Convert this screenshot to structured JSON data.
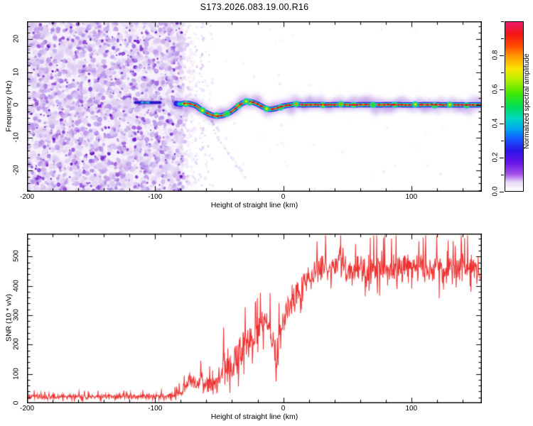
{
  "title": "S173.2026.083.19.00.R16",
  "top_plot": {
    "xlabel": "Height of straight line (km)",
    "ylabel": "Frequency (Hz)",
    "xlim": [
      -200,
      155
    ],
    "ylim": [
      -26.5,
      25.5
    ],
    "x_tick_labels": [
      "-200",
      "-100",
      "0",
      "100"
    ],
    "x_tick_values": [
      -200,
      -100,
      0,
      100
    ],
    "x_minor_step": 20,
    "y_tick_labels": [
      "-20",
      "-10",
      "0",
      "10",
      "20"
    ],
    "y_tick_values": [
      -20,
      -10,
      0,
      10,
      20
    ],
    "y_minor_step": 2
  },
  "colorbar": {
    "label": "Normalized spectral amplitude",
    "tick_labels": [
      "0.0",
      "0.2",
      "0.4",
      "0.6",
      "0.8"
    ],
    "tick_values": [
      0,
      0.2,
      0.4,
      0.6,
      0.8
    ],
    "minor_step": 0.1,
    "range": [
      0,
      1
    ],
    "stops": [
      [
        0,
        "#ffffff"
      ],
      [
        0.05,
        "#eadcf7"
      ],
      [
        0.1,
        "#a24fe8"
      ],
      [
        0.17,
        "#6613e8"
      ],
      [
        0.24,
        "#2b15e8"
      ],
      [
        0.31,
        "#115cff"
      ],
      [
        0.37,
        "#00aaf0"
      ],
      [
        0.43,
        "#00d8c0"
      ],
      [
        0.5,
        "#00dd55"
      ],
      [
        0.58,
        "#44e800"
      ],
      [
        0.66,
        "#b8ee00"
      ],
      [
        0.72,
        "#fae800"
      ],
      [
        0.79,
        "#ffa000"
      ],
      [
        0.86,
        "#ff4a00"
      ],
      [
        0.93,
        "#f21414"
      ],
      [
        1,
        "#ef1a6e"
      ]
    ]
  },
  "bottom_plot": {
    "xlabel": "Height of straight line (km)",
    "ylabel": "SNR (10 * v/v)",
    "xlim": [
      -200,
      155
    ],
    "ylim": [
      0,
      578
    ],
    "x_tick_labels": [
      "-200",
      "-100",
      "0",
      "100"
    ],
    "x_tick_values": [
      -200,
      -100,
      0,
      100
    ],
    "x_minor_step": 20,
    "y_tick_labels": [
      "0",
      "100",
      "200",
      "300",
      "400",
      "500"
    ],
    "y_tick_values": [
      0,
      100,
      200,
      300,
      400,
      500
    ],
    "y_minor_step": 20
  },
  "colors": {
    "frame": "#000000",
    "snr_line": "#ee3333",
    "noise_base": "rgba(236,226,248,0.5)",
    "noise_palette": [
      "#ddcbf2",
      "#b892e8",
      "#9350dc",
      "#6d16cc"
    ],
    "fuzz": "rgba(148,90,220,0.4)",
    "trace_blue": "#2f1ae0",
    "trace_cyan": "#00b8f0",
    "trace_green": "#00d84a",
    "trace_yellow": "#d8ee00",
    "trace_red": "#ff2812",
    "trace_crimson": "#e40040",
    "knot_cyan": "#17c8ec",
    "knot_green": "#2ad83c",
    "knot_yellow": "#e8ee00",
    "precursor_blue": "#2a14cc",
    "precursor_cyan": "#19c8e8",
    "streak_dot": "#b084e4"
  },
  "chart_data": [
    {
      "type": "heatmap",
      "title": "S173.2026.083.19.00.R16",
      "xlabel": "Height of straight line (km)",
      "ylabel": "Frequency (Hz)",
      "colorbar_label": "Normalized spectral amplitude",
      "xlim": [
        -200,
        155
      ],
      "ylim": [
        -26.5,
        25.5
      ],
      "amplitude_range": [
        0,
        1
      ],
      "noise_region": {
        "x_range": [
          -200,
          -78
        ],
        "freq_range": [
          -26.5,
          25.5
        ],
        "description": "dense low-amplitude purple speckle noise, fading out by -70 km",
        "amplitude": [
          0,
          0.15
        ]
      },
      "precursor_segment": {
        "x_range": [
          -115.5,
          -96
        ],
        "freq": 0.7,
        "amplitude": 0.25
      },
      "signal_trace": [
        [
          -83,
          0.4,
          0.45
        ],
        [
          -80,
          0.2,
          0.6
        ],
        [
          -77,
          0.5,
          0.85
        ],
        [
          -74,
          0.4,
          0.9
        ],
        [
          -71,
          0.1,
          0.85
        ],
        [
          -68,
          -0.3,
          0.7
        ],
        [
          -65,
          -1.2,
          0.65
        ],
        [
          -62,
          -2.0,
          0.75
        ],
        [
          -59,
          -2.6,
          0.7
        ],
        [
          -56,
          -3.1,
          0.75
        ],
        [
          -53,
          -3.4,
          0.8
        ],
        [
          -50,
          -3.4,
          0.75
        ],
        [
          -47,
          -3.2,
          0.8
        ],
        [
          -44,
          -2.7,
          0.7
        ],
        [
          -41,
          -2.2,
          0.75
        ],
        [
          -38,
          -1.3,
          0.7
        ],
        [
          -35,
          -0.3,
          0.8
        ],
        [
          -32,
          0.5,
          0.85
        ],
        [
          -29,
          0.9,
          0.9
        ],
        [
          -26,
          1.0,
          0.9
        ],
        [
          -23,
          0.7,
          0.85
        ],
        [
          -20,
          0.2,
          0.8
        ],
        [
          -17,
          -0.4,
          0.8
        ],
        [
          -14,
          -1.0,
          0.85
        ],
        [
          -11,
          -1.4,
          0.8
        ],
        [
          -8,
          -1.3,
          0.8
        ],
        [
          -5,
          -1.0,
          0.85
        ],
        [
          -2,
          -0.6,
          0.9
        ],
        [
          1,
          -0.3,
          0.9
        ],
        [
          4,
          -0.1,
          0.95
        ],
        [
          8,
          0.1,
          0.95
        ],
        [
          15,
          0.0,
          0.95
        ],
        [
          25,
          0.05,
          0.95
        ],
        [
          35,
          0.0,
          0.95
        ],
        [
          45,
          0.05,
          0.9
        ],
        [
          55,
          0.0,
          0.95
        ],
        [
          65,
          0.05,
          0.95
        ],
        [
          75,
          0.0,
          0.9
        ],
        [
          85,
          0.05,
          0.95
        ],
        [
          95,
          0.0,
          0.95
        ],
        [
          105,
          0.0,
          0.95
        ],
        [
          115,
          0.05,
          0.95
        ],
        [
          125,
          0.0,
          0.95
        ],
        [
          135,
          0.0,
          0.95
        ],
        [
          145,
          0.0,
          0.95
        ],
        [
          155,
          0.0,
          0.95
        ]
      ],
      "green_knots": [
        -76,
        -63,
        -52,
        -44,
        -35,
        -29,
        -26,
        -13,
        -2,
        10,
        31,
        45,
        55,
        70,
        87,
        103,
        118,
        130,
        143
      ],
      "multipath_streaks": [
        {
          "from": [
            -54,
            -8
          ],
          "to": [
            -30,
            -22
          ]
        },
        {
          "from": [
            -59,
            -3.5
          ],
          "to": [
            -50,
            -8
          ]
        }
      ],
      "sparse_dot_columns": [
        -68,
        -63
      ]
    },
    {
      "type": "line",
      "xlabel": "Height of straight line (km)",
      "ylabel": "SNR (10 * v/v)",
      "xlim": [
        -200,
        155
      ],
      "ylim": [
        0,
        578
      ],
      "series": [
        {
          "name": "SNR",
          "color": "#ee3333",
          "anchors_x_mean_jitter": [
            [
              -200,
              22,
              12
            ],
            [
              -180,
              22,
              12
            ],
            [
              -160,
              23,
              12
            ],
            [
              -140,
              22,
              12
            ],
            [
              -120,
              23,
              12
            ],
            [
              -100,
              24,
              12
            ],
            [
              -90,
              25,
              13
            ],
            [
              -84,
              28,
              15
            ],
            [
              -79,
              40,
              22
            ],
            [
              -75,
              65,
              30
            ],
            [
              -71,
              85,
              35
            ],
            [
              -68,
              55,
              28
            ],
            [
              -64,
              90,
              38
            ],
            [
              -61,
              65,
              30
            ],
            [
              -58,
              75,
              35
            ],
            [
              -55,
              55,
              30
            ],
            [
              -52,
              80,
              40
            ],
            [
              -49,
              95,
              45
            ],
            [
              -46,
              150,
              90
            ],
            [
              -44,
              100,
              60
            ],
            [
              -42,
              130,
              70
            ],
            [
              -40,
              95,
              55
            ],
            [
              -38,
              160,
              80
            ],
            [
              -36,
              130,
              70
            ],
            [
              -34,
              190,
              85
            ],
            [
              -32,
              150,
              75
            ],
            [
              -30,
              235,
              85
            ],
            [
              -28,
              190,
              80
            ],
            [
              -26,
              240,
              80
            ],
            [
              -24,
              185,
              75
            ],
            [
              -22,
              215,
              75
            ],
            [
              -20,
              240,
              70
            ],
            [
              -18,
              255,
              65
            ],
            [
              -16,
              270,
              65
            ],
            [
              -14,
              285,
              70
            ],
            [
              -12,
              270,
              70
            ],
            [
              -10,
              230,
              80
            ],
            [
              -8,
              205,
              80
            ],
            [
              -6,
              160,
              80
            ],
            [
              -4,
              170,
              85
            ],
            [
              -2,
              230,
              80
            ],
            [
              0,
              275,
              75
            ],
            [
              3,
              310,
              70
            ],
            [
              6,
              340,
              70
            ],
            [
              9,
              360,
              65
            ],
            [
              12,
              380,
              65
            ],
            [
              15,
              400,
              62
            ],
            [
              18,
              415,
              62
            ],
            [
              21,
              432,
              62
            ],
            [
              25,
              448,
              66
            ],
            [
              30,
              455,
              70
            ],
            [
              35,
              470,
              75
            ],
            [
              40,
              465,
              78
            ],
            [
              45,
              480,
              80
            ],
            [
              50,
              462,
              72
            ],
            [
              55,
              455,
              70
            ],
            [
              60,
              465,
              72
            ],
            [
              65,
              450,
              70
            ],
            [
              70,
              458,
              72
            ],
            [
              75,
              465,
              74
            ],
            [
              80,
              455,
              70
            ],
            [
              85,
              462,
              72
            ],
            [
              90,
              452,
              70
            ],
            [
              95,
              460,
              72
            ],
            [
              100,
              450,
              70
            ],
            [
              105,
              458,
              72
            ],
            [
              110,
              462,
              74
            ],
            [
              115,
              452,
              70
            ],
            [
              120,
              460,
              74
            ],
            [
              125,
              455,
              72
            ],
            [
              130,
              462,
              74
            ],
            [
              135,
              452,
              70
            ],
            [
              140,
              458,
              72
            ],
            [
              145,
              462,
              74
            ],
            [
              150,
              455,
              72
            ],
            [
              155,
              450,
              72
            ]
          ],
          "description": "noise floor ~25 below -85 km, fluctuating rise between -75 and +20 km, noisy plateau ~450 above +25 km"
        }
      ]
    }
  ]
}
